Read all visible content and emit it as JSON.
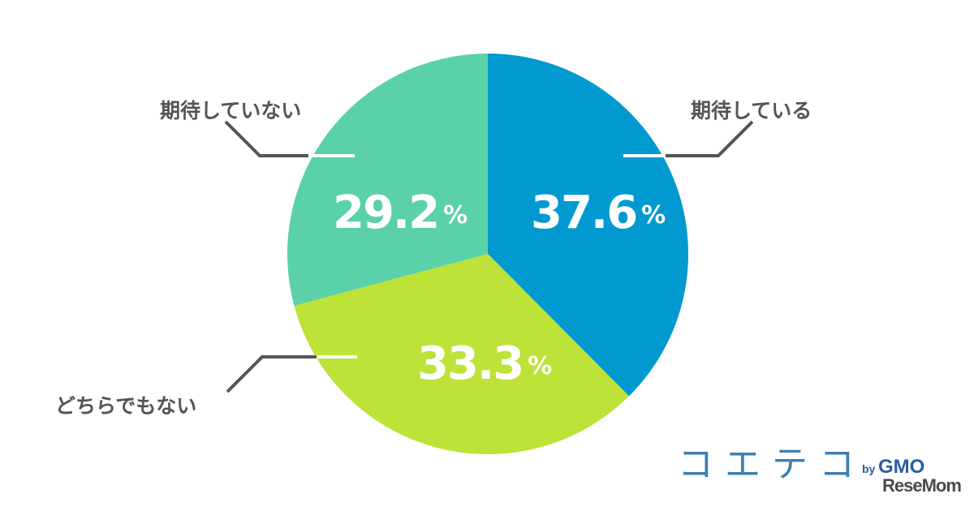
{
  "chart_data": {
    "type": "pie",
    "slices": [
      {
        "label": "期待している",
        "value": 37.6,
        "color": "#0199d0"
      },
      {
        "label": "どちらでもない",
        "value": 33.3,
        "color": "#bde238"
      },
      {
        "label": "期待していない",
        "value": 29.2,
        "color": "#5ad1a8"
      }
    ],
    "value_texts": [
      "37.6",
      "33.3",
      "29.2"
    ],
    "unit": "%",
    "start": "12 o'clock",
    "direction": "clockwise"
  },
  "brand": {
    "name": "コエテコ",
    "by": "by",
    "gmo": "GMO",
    "resemom": "ReseMom"
  }
}
